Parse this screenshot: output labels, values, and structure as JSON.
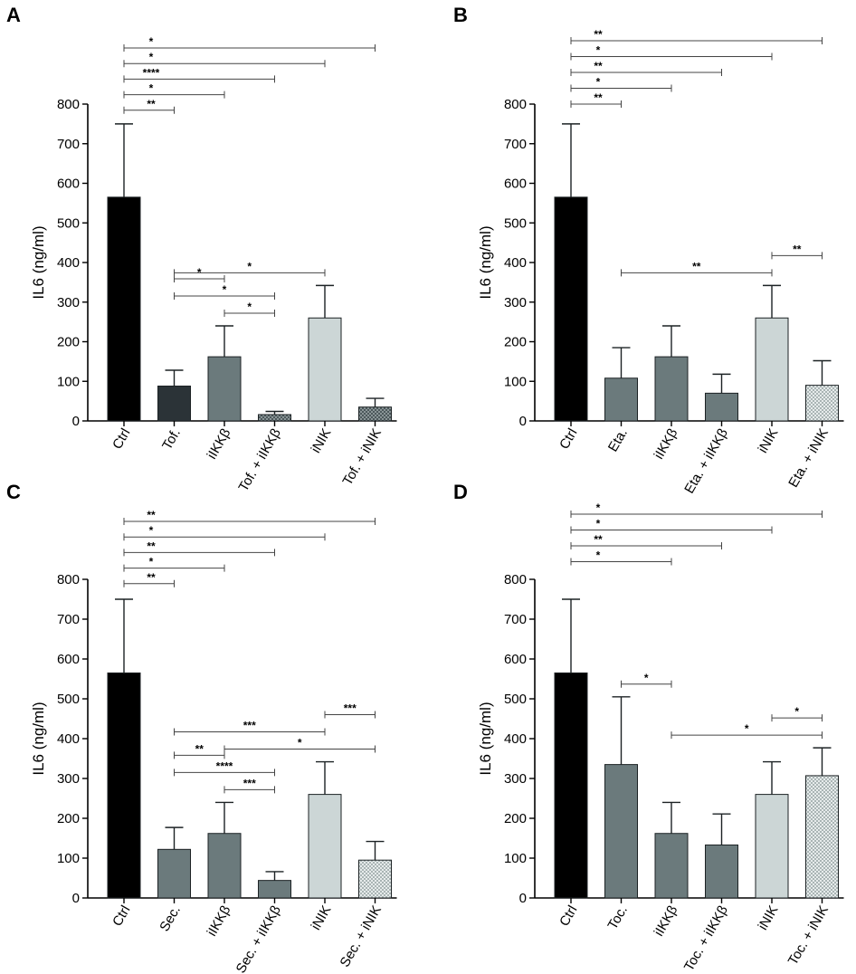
{
  "colors": {
    "ctrl": "#000000",
    "dark": "#2b3337",
    "gray": "#6b7a7c",
    "light": "#ccd6d6",
    "hatch_dark": "#4c585b",
    "hatch_light": "#d3dada"
  },
  "chart_data": [
    {
      "type": "bar",
      "panel": "A",
      "ylabel": "IL6 (ng/ml)",
      "ylim": [
        0,
        800
      ],
      "yticks": [
        "0",
        "100",
        "200",
        "300",
        "400",
        "500",
        "600",
        "700",
        "800"
      ],
      "categories": [
        "Ctrl",
        "Tof.",
        "iIKKβ",
        "Tof. + iIKKβ",
        "iNIK",
        "Tof. + iNIK"
      ],
      "values": [
        565,
        88,
        162,
        16,
        260,
        35
      ],
      "errors": [
        185,
        40,
        78,
        8,
        82,
        22
      ],
      "styles": [
        "ctrl",
        "dark",
        "gray",
        "hatch_dark",
        "light",
        "hatch_dark"
      ],
      "significance": [
        {
          "from": 0,
          "to": 5,
          "label": "*"
        },
        {
          "from": 0,
          "to": 4,
          "label": "*"
        },
        {
          "from": 0,
          "to": 3,
          "label": "****"
        },
        {
          "from": 0,
          "to": 2,
          "label": "*"
        },
        {
          "from": 0,
          "to": 1,
          "label": "**"
        },
        {
          "from": 1,
          "to": 4,
          "label": "*"
        },
        {
          "from": 2,
          "to": 3,
          "label": "*"
        },
        {
          "from": 1,
          "to": 3,
          "label": "*"
        },
        {
          "from": 1,
          "to": 2,
          "label": "*"
        }
      ]
    },
    {
      "type": "bar",
      "panel": "B",
      "ylabel": "IL6 (ng/ml)",
      "ylim": [
        0,
        800
      ],
      "yticks": [
        "0",
        "100",
        "200",
        "300",
        "400",
        "500",
        "600",
        "700",
        "800"
      ],
      "categories": [
        "Ctrl",
        "Eta.",
        "iIKKβ",
        "Eta. + iIKKβ",
        "iNIK",
        "Eta. + iNIK"
      ],
      "values": [
        565,
        108,
        162,
        70,
        260,
        90
      ],
      "errors": [
        185,
        77,
        78,
        48,
        82,
        62
      ],
      "styles": [
        "ctrl",
        "gray",
        "gray",
        "gray",
        "light",
        "hatch_light"
      ],
      "significance": [
        {
          "from": 0,
          "to": 5,
          "label": "**"
        },
        {
          "from": 0,
          "to": 4,
          "label": "*"
        },
        {
          "from": 0,
          "to": 3,
          "label": "**"
        },
        {
          "from": 0,
          "to": 2,
          "label": "*"
        },
        {
          "from": 0,
          "to": 1,
          "label": "**"
        },
        {
          "from": 1,
          "to": 4,
          "label": "**"
        },
        {
          "from": 4,
          "to": 5,
          "label": "**"
        }
      ]
    },
    {
      "type": "bar",
      "panel": "C",
      "ylabel": "IL6 (ng/ml)",
      "ylim": [
        0,
        800
      ],
      "yticks": [
        "0",
        "100",
        "200",
        "300",
        "400",
        "500",
        "600",
        "700",
        "800"
      ],
      "categories": [
        "Ctrl",
        "Sec.",
        "iIKKβ",
        "Sec. + iIKKβ",
        "iNIK",
        "Sec. + iNIK"
      ],
      "values": [
        565,
        122,
        162,
        44,
        260,
        95
      ],
      "errors": [
        185,
        55,
        78,
        22,
        82,
        47
      ],
      "styles": [
        "ctrl",
        "gray",
        "gray",
        "gray",
        "light",
        "hatch_light"
      ],
      "significance": [
        {
          "from": 0,
          "to": 5,
          "label": "**"
        },
        {
          "from": 0,
          "to": 4,
          "label": "*"
        },
        {
          "from": 0,
          "to": 3,
          "label": "**"
        },
        {
          "from": 0,
          "to": 2,
          "label": "*"
        },
        {
          "from": 0,
          "to": 1,
          "label": "**"
        },
        {
          "from": 2,
          "to": 5,
          "label": "*"
        },
        {
          "from": 1,
          "to": 4,
          "label": "***"
        },
        {
          "from": 2,
          "to": 3,
          "label": "***"
        },
        {
          "from": 4,
          "to": 5,
          "label": "***"
        },
        {
          "from": 1,
          "to": 3,
          "label": "****"
        },
        {
          "from": 1,
          "to": 2,
          "label": "**"
        }
      ]
    },
    {
      "type": "bar",
      "panel": "D",
      "ylabel": "IL6 (ng/ml)",
      "ylim": [
        0,
        800
      ],
      "yticks": [
        "0",
        "100",
        "200",
        "300",
        "400",
        "500",
        "600",
        "700",
        "800"
      ],
      "categories": [
        "Ctrl",
        "Toc.",
        "iIKKβ",
        "Toc. + iIKKβ",
        "iNIK",
        "Toc. + iNIK"
      ],
      "values": [
        565,
        335,
        162,
        133,
        260,
        307
      ],
      "errors": [
        185,
        170,
        78,
        78,
        82,
        70
      ],
      "styles": [
        "ctrl",
        "gray",
        "gray",
        "gray",
        "light",
        "hatch_light"
      ],
      "significance": [
        {
          "from": 0,
          "to": 5,
          "label": "*"
        },
        {
          "from": 0,
          "to": 4,
          "label": "*"
        },
        {
          "from": 0,
          "to": 3,
          "label": "**"
        },
        {
          "from": 0,
          "to": 2,
          "label": "*"
        },
        {
          "from": 1,
          "to": 2,
          "label": "*"
        },
        {
          "from": 2,
          "to": 5,
          "label": "*"
        },
        {
          "from": 4,
          "to": 5,
          "label": "*"
        }
      ]
    }
  ]
}
